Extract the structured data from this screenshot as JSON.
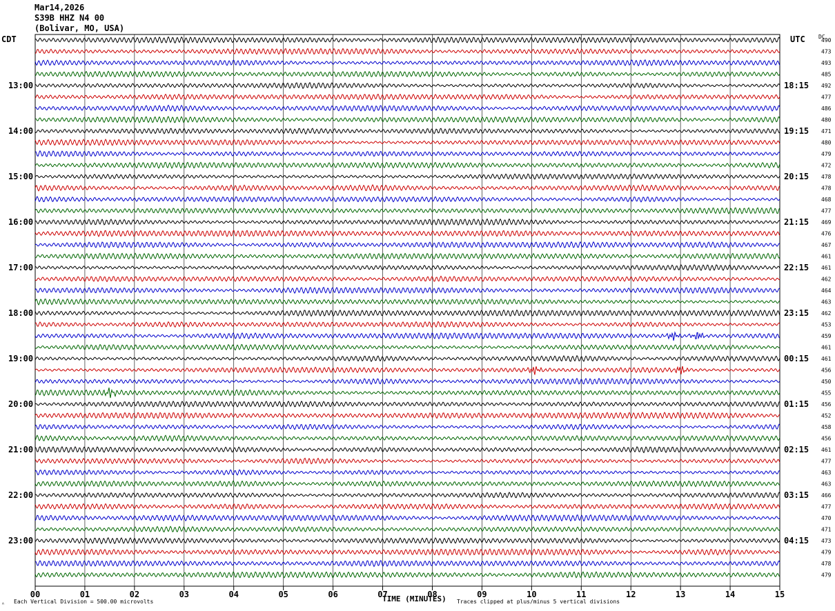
{
  "header": {
    "date": "Mar14,2026",
    "station": "S39B HHZ N4 00",
    "location": "(Bolivar, MO, USA)"
  },
  "left_tz": "CDT",
  "right_tz": "UTC",
  "dc_label": "DC",
  "footer": {
    "scale_note": "Each Vertical Division =  500.00 microvolts",
    "xlabel": "TIME (MINUTES)",
    "clip_note": "Traces clipped at plus/minus 5 vertical divisions",
    "corner_mark": "ᴬ"
  },
  "colors": {
    "cycle": [
      "#000000",
      "#cc0000",
      "#0000cc",
      "#006600"
    ],
    "grid": "#000000"
  },
  "chart_data": {
    "type": "line",
    "description_free": true,
    "x_ticks": [
      "00",
      "01",
      "02",
      "03",
      "04",
      "05",
      "06",
      "07",
      "08",
      "09",
      "10",
      "11",
      "12",
      "13",
      "14",
      "15"
    ],
    "xlim": [
      0,
      15
    ],
    "rows": 48,
    "left_hour_labels": [
      "13:00",
      "14:00",
      "15:00",
      "16:00",
      "17:00",
      "18:00",
      "19:00",
      "20:00",
      "21:00",
      "22:00",
      "23:00"
    ],
    "right_hour_labels": [
      "18:15",
      "19:15",
      "20:15",
      "21:15",
      "22:15",
      "23:15",
      "00:15",
      "01:15",
      "02:15",
      "03:15",
      "04:15"
    ],
    "dc_values": [
      490,
      473,
      493,
      485,
      492,
      477,
      486,
      480,
      471,
      480,
      479,
      472,
      478,
      478,
      468,
      477,
      469,
      476,
      467,
      461,
      461,
      462,
      464,
      463,
      462,
      453,
      459,
      461,
      461,
      456,
      450,
      455,
      456,
      452,
      458,
      456,
      461,
      477,
      463,
      463,
      466,
      477,
      470,
      471,
      473,
      479,
      478,
      479
    ],
    "events": [
      {
        "row": 26,
        "minute": 12.85
      },
      {
        "row": 26,
        "minute": 13.35
      },
      {
        "row": 29,
        "minute": 10.05
      },
      {
        "row": 29,
        "minute": 13.0
      },
      {
        "row": 31,
        "minute": 1.5
      }
    ]
  }
}
